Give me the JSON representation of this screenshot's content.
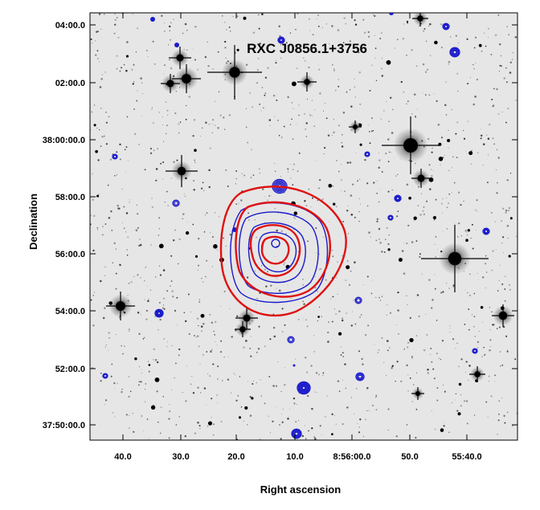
{
  "title": "RXC J0856.1+3756",
  "axes": {
    "xlabel": "Right ascension",
    "ylabel": "Declination",
    "xticks": [
      "40.0",
      "30.0",
      "20.0",
      "10.0",
      "8:56:00.0",
      "50.0",
      "55:40.0"
    ],
    "yticks": [
      "04:00.0",
      "02:00.0",
      "38:00:00.0",
      "58:00.0",
      "56:00.0",
      "54:00.0",
      "52:00.0",
      "37:50:00.0"
    ]
  },
  "colors": {
    "background": "#e6e6e6",
    "xray_contours": "#e01010",
    "radio_contours": "#1a1acc",
    "stars": "#000000"
  }
}
